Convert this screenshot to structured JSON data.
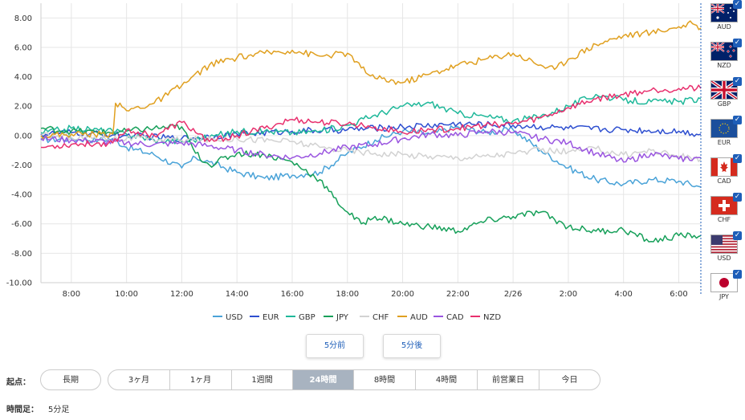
{
  "chart_data": {
    "type": "line",
    "ylim": [
      -10,
      9
    ],
    "yticks": [
      8,
      6,
      4,
      2,
      0,
      -2,
      -4,
      -6,
      -8,
      -10
    ],
    "ytick_labels": [
      "8.00",
      "6.00",
      "4.00",
      "2.00",
      "0.00",
      "-2.00",
      "-4.00",
      "-6.00",
      "-8.00",
      "-10.00"
    ],
    "x_hours": [
      8,
      10,
      12,
      14,
      16,
      18,
      20,
      22,
      24,
      26,
      28,
      30
    ],
    "xtick_labels": [
      "8:00",
      "10:00",
      "12:00",
      "14:00",
      "16:00",
      "18:00",
      "20:00",
      "22:00",
      "2/26",
      "2:00",
      "4:00",
      "6:00"
    ],
    "x_range": [
      6.9,
      30.8
    ],
    "series": [
      {
        "name": "USD",
        "color": "#4aa3d8",
        "x": [
          6.9,
          8,
          9,
          9.5,
          10,
          11,
          12,
          12.5,
          13,
          14,
          15,
          16,
          16.5,
          17,
          18,
          19,
          20,
          21,
          22,
          23,
          24,
          25,
          26,
          27,
          28,
          29,
          30,
          30.8
        ],
        "y": [
          -0.3,
          -0.2,
          -0.3,
          -0.2,
          -0.8,
          -1.3,
          -2.2,
          -1.5,
          -1.8,
          -2.5,
          -2.9,
          -2.7,
          -2.6,
          -2.5,
          -1.2,
          -0.3,
          0.3,
          0.1,
          0.6,
          0.2,
          0.4,
          -1.0,
          -2.2,
          -3.0,
          -3.3,
          -3.0,
          -3.1,
          -3.5
        ]
      },
      {
        "name": "EUR",
        "color": "#2e4fd0",
        "x": [
          6.9,
          8,
          10,
          12,
          14,
          16,
          18,
          20,
          22,
          24,
          26,
          28,
          30,
          30.8
        ],
        "y": [
          0.1,
          0.2,
          0.0,
          -0.2,
          0.1,
          0.3,
          0.4,
          0.6,
          0.8,
          0.7,
          0.5,
          0.4,
          0.3,
          0.1
        ]
      },
      {
        "name": "GBP",
        "color": "#1fb89a",
        "x": [
          6.9,
          8,
          9.5,
          10,
          11,
          12,
          13,
          14,
          15,
          16,
          17,
          18,
          19,
          20,
          21,
          22,
          23,
          24,
          25,
          26,
          27,
          28,
          29,
          30,
          30.8
        ],
        "y": [
          0.2,
          0.5,
          0.3,
          0.1,
          -0.3,
          -0.4,
          -0.1,
          0.3,
          0.3,
          0.2,
          0.3,
          0.7,
          1.4,
          2.0,
          2.2,
          1.5,
          1.3,
          1.0,
          1.3,
          2.0,
          2.8,
          2.4,
          2.3,
          2.3,
          2.5
        ]
      },
      {
        "name": "JPY",
        "color": "#17a05a",
        "x": [
          6.9,
          8,
          9.5,
          10,
          11,
          12,
          12.5,
          13,
          14,
          15,
          16,
          17,
          17.5,
          18,
          18.5,
          19,
          20,
          21,
          22,
          23,
          24,
          25,
          26,
          27,
          28,
          29,
          30,
          30.8
        ],
        "y": [
          0.5,
          0.3,
          0.2,
          0.3,
          0.5,
          0.6,
          -1.2,
          -2.0,
          -1.2,
          -1.3,
          -1.8,
          -3.0,
          -4.2,
          -5.2,
          -6.0,
          -5.5,
          -6.0,
          -6.2,
          -6.5,
          -5.8,
          -5.5,
          -5.2,
          -6.2,
          -6.5,
          -6.4,
          -7.2,
          -6.8,
          -6.8
        ]
      },
      {
        "name": "CHF",
        "color": "#d2d2d2",
        "x": [
          6.9,
          8,
          10,
          12,
          14,
          16,
          17,
          18,
          19,
          20,
          21,
          22,
          23,
          24,
          25,
          26,
          27,
          28,
          29,
          30,
          30.8
        ],
        "y": [
          0.0,
          -0.1,
          -0.2,
          -0.3,
          -0.2,
          -0.4,
          -0.8,
          -1.0,
          -1.2,
          -1.3,
          -1.4,
          -1.5,
          -1.4,
          -1.2,
          -1.0,
          -1.1,
          -0.9,
          -1.3,
          -1.0,
          -1.4,
          -1.6
        ]
      },
      {
        "name": "AUD",
        "color": "#e0a020",
        "x": [
          6.9,
          8,
          9.5,
          9.6,
          10,
          11,
          12,
          13,
          14,
          15,
          16,
          17,
          18,
          18.5,
          19,
          20,
          21,
          22,
          23,
          24,
          25,
          25.5,
          26,
          27,
          28,
          29,
          30,
          30.5,
          30.8
        ],
        "y": [
          0.0,
          0.1,
          0.1,
          2.2,
          1.7,
          2.2,
          3.4,
          4.8,
          5.3,
          5.6,
          5.8,
          5.4,
          5.6,
          4.6,
          3.9,
          3.6,
          4.2,
          4.8,
          5.2,
          5.6,
          4.8,
          4.5,
          5.2,
          6.2,
          6.8,
          7.0,
          7.4,
          7.6,
          7.3
        ]
      },
      {
        "name": "CAD",
        "color": "#9a55e0",
        "x": [
          6.9,
          8,
          10,
          11,
          12,
          13,
          14,
          15,
          16,
          17,
          18,
          19,
          20,
          21,
          22,
          23,
          24,
          25,
          26,
          27,
          28,
          29,
          30,
          30.8
        ],
        "y": [
          -0.2,
          -0.3,
          -0.5,
          -0.6,
          -0.5,
          -0.7,
          -1.0,
          -1.3,
          -1.5,
          -1.2,
          -0.8,
          -0.6,
          -0.2,
          0.1,
          0.0,
          0.3,
          0.2,
          -0.2,
          -0.5,
          -1.2,
          -1.8,
          -1.2,
          -1.6,
          -1.5
        ]
      },
      {
        "name": "NZD",
        "color": "#e8306e",
        "x": [
          6.9,
          8,
          9.5,
          10,
          11,
          12,
          13,
          14,
          15,
          16,
          17,
          18,
          19,
          20,
          21,
          22,
          23,
          24,
          25,
          26,
          27,
          28,
          29,
          30,
          30.8
        ],
        "y": [
          -0.8,
          -0.6,
          -0.5,
          0.4,
          0.0,
          0.9,
          -0.4,
          0.0,
          0.5,
          1.1,
          0.9,
          0.8,
          0.6,
          0.2,
          0.4,
          0.5,
          0.7,
          0.8,
          1.2,
          1.9,
          2.5,
          2.8,
          3.1,
          3.2,
          3.2
        ]
      }
    ]
  },
  "flags": [
    {
      "code": "AUD",
      "check": "✓"
    },
    {
      "code": "NZD",
      "check": "✓"
    },
    {
      "code": "GBP",
      "check": "✓"
    },
    {
      "code": "EUR",
      "check": "✓"
    },
    {
      "code": "CAD",
      "check": "✓"
    },
    {
      "code": "CHF",
      "check": "✓"
    },
    {
      "code": "USD",
      "check": "✓"
    },
    {
      "code": "JPY",
      "check": "✓"
    }
  ],
  "nav": {
    "prev": "5分前",
    "next": "5分後"
  },
  "period": {
    "label": "起点：",
    "long": "長期",
    "options": [
      "3ヶ月",
      "1ヶ月",
      "1週間",
      "24時間",
      "8時間",
      "4時間",
      "前営業日",
      "今日"
    ],
    "active": "24時間"
  },
  "timeframe": {
    "label": "時間足：",
    "value": "5分足"
  }
}
